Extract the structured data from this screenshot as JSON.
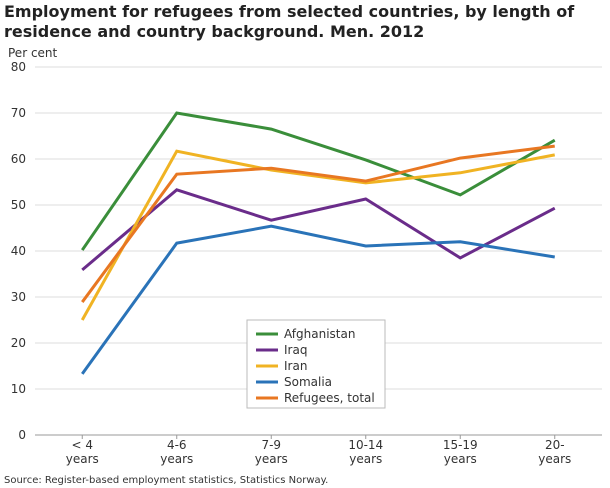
{
  "chart_data": {
    "type": "line",
    "title": "Employment for refugees from selected countries, by length of residence and country background. Men. 2012",
    "y_label": "Per cent",
    "categories": [
      "< 4 years",
      "4-6 years",
      "7-9 years",
      "10-14 years",
      "15-19 years",
      "20- years"
    ],
    "series": [
      {
        "name": "Afghanistan",
        "color": "#3a8e3a",
        "values": [
          40.2,
          70,
          66.5,
          59.8,
          52.2,
          64.1
        ]
      },
      {
        "name": "Iraq",
        "color": "#6a2c8a",
        "values": [
          35.9,
          53.3,
          46.7,
          51.3,
          38.5,
          49.3
        ]
      },
      {
        "name": "Iran",
        "color": "#f0b323",
        "values": [
          25,
          61.7,
          57.6,
          54.8,
          57,
          60.9
        ]
      },
      {
        "name": "Somalia",
        "color": "#2a73b8",
        "values": [
          13.3,
          41.7,
          45.4,
          41.1,
          42,
          38.7
        ]
      },
      {
        "name": "Refugees, total",
        "color": "#e87722",
        "values": [
          28.9,
          56.7,
          58,
          55.2,
          60.2,
          62.8
        ]
      }
    ],
    "ylim": [
      0,
      80
    ],
    "yticks": [
      0,
      10,
      20,
      30,
      40,
      50,
      60,
      70,
      80
    ],
    "grid": true,
    "source": "Source: Register-based employment statistics, Statistics Norway."
  }
}
